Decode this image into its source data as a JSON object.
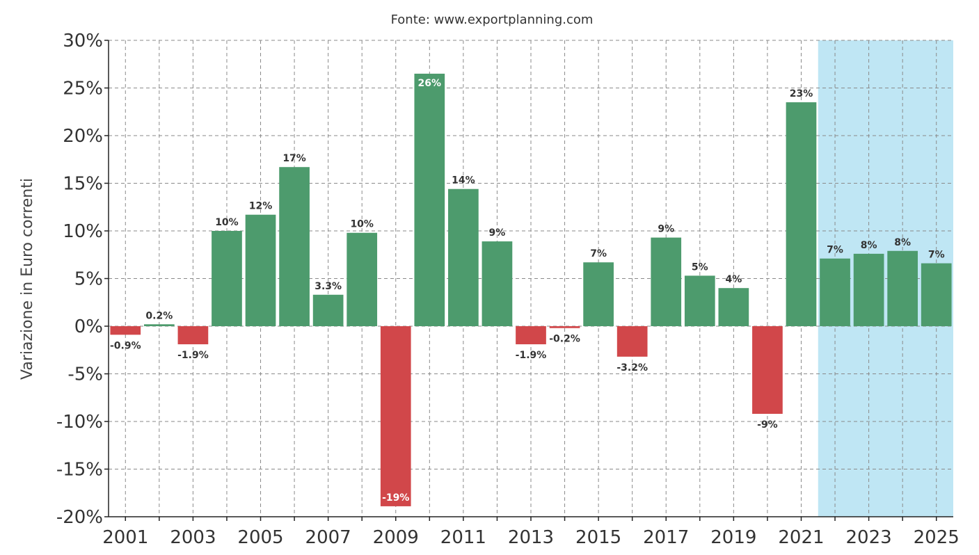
{
  "chart_data": {
    "type": "bar",
    "title": "",
    "subtitle": "Fonte: www.exportplanning.com",
    "xlabel": "",
    "ylabel": "Variazione in Euro correnti",
    "ylim": [
      -20,
      30
    ],
    "yticks": [
      -20,
      -15,
      -10,
      -5,
      0,
      5,
      10,
      15,
      20,
      25,
      30
    ],
    "ytick_labels": [
      "-20%",
      "-15%",
      "-10%",
      "-5%",
      "0%",
      "5%",
      "10%",
      "15%",
      "20%",
      "25%",
      "30%"
    ],
    "categories": [
      2001,
      2002,
      2003,
      2004,
      2005,
      2006,
      2007,
      2008,
      2009,
      2010,
      2011,
      2012,
      2013,
      2014,
      2015,
      2016,
      2017,
      2018,
      2019,
      2020,
      2021,
      2022,
      2023,
      2024,
      2025
    ],
    "xtick_labels": [
      "2001",
      "2003",
      "2005",
      "2007",
      "2009",
      "2011",
      "2013",
      "2015",
      "2017",
      "2019",
      "2021",
      "2023",
      "2025"
    ],
    "values": [
      -0.9,
      0.2,
      -1.9,
      10.0,
      11.7,
      16.7,
      3.3,
      9.8,
      -18.9,
      26.5,
      14.4,
      8.9,
      -1.9,
      -0.2,
      6.7,
      -3.2,
      9.3,
      5.3,
      4.0,
      -9.2,
      23.5,
      7.1,
      7.6,
      7.9,
      6.6
    ],
    "data_labels": [
      "-0.9%",
      "0.2%",
      "-1.9%",
      "10%",
      "12%",
      "17%",
      "3.3%",
      "10%",
      "-19%",
      "26%",
      "14%",
      "9%",
      "-1.9%",
      "-0.2%",
      "7%",
      "-3.2%",
      "9%",
      "5%",
      "4%",
      "-9%",
      "23%",
      "7%",
      "8%",
      "8%",
      "7%"
    ],
    "forecast_region": [
      2022,
      2025
    ],
    "grid": true,
    "legend": "none",
    "colors": {
      "positive": "#4d9b6d",
      "negative": "#d1474a",
      "forecast_band": "#bfe6f4",
      "label_dark": "#333333",
      "label_inside": "#ffffff"
    }
  }
}
